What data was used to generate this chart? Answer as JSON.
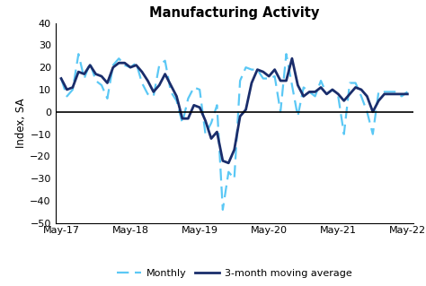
{
  "title": "Manufacturing Activity",
  "ylabel": "Index, SA",
  "ylim": [
    -50,
    40
  ],
  "yticks": [
    -50,
    -40,
    -30,
    -20,
    -10,
    0,
    10,
    20,
    30,
    40
  ],
  "monthly_color": "#5BC8F5",
  "ma_color": "#1A2D6B",
  "monthly_linewidth": 1.6,
  "ma_linewidth": 2.0,
  "background_color": "#ffffff",
  "x_labels": [
    "May-17",
    "May-18",
    "May-19",
    "May-20",
    "May-21",
    "May-22"
  ],
  "monthly": [
    15,
    7,
    10,
    26,
    15,
    22,
    14,
    12,
    6,
    21,
    24,
    21,
    20,
    22,
    13,
    8,
    7,
    21,
    23,
    9,
    5,
    -5,
    6,
    11,
    10,
    -10,
    -5,
    3,
    -44,
    -27,
    -30,
    14,
    20,
    19,
    19,
    15,
    15,
    16,
    0,
    26,
    12,
    -2,
    11,
    9,
    7,
    14,
    8,
    10,
    7,
    -10,
    13,
    13,
    7,
    0,
    -10,
    9,
    9,
    9,
    9,
    7,
    9
  ],
  "moving_avg": [
    15,
    10,
    11,
    18,
    17,
    21,
    17,
    16,
    13,
    20,
    22,
    22,
    20,
    21,
    18,
    14,
    9,
    12,
    17,
    12,
    7,
    -3,
    -3,
    3,
    2,
    -4,
    -12,
    -9,
    -22,
    -23,
    -17,
    -2,
    1,
    13,
    19,
    18,
    16,
    19,
    14,
    14,
    24,
    12,
    7,
    9,
    9,
    11,
    8,
    10,
    8,
    5,
    8,
    11,
    10,
    7,
    0,
    5,
    8,
    8,
    8,
    8,
    8
  ]
}
